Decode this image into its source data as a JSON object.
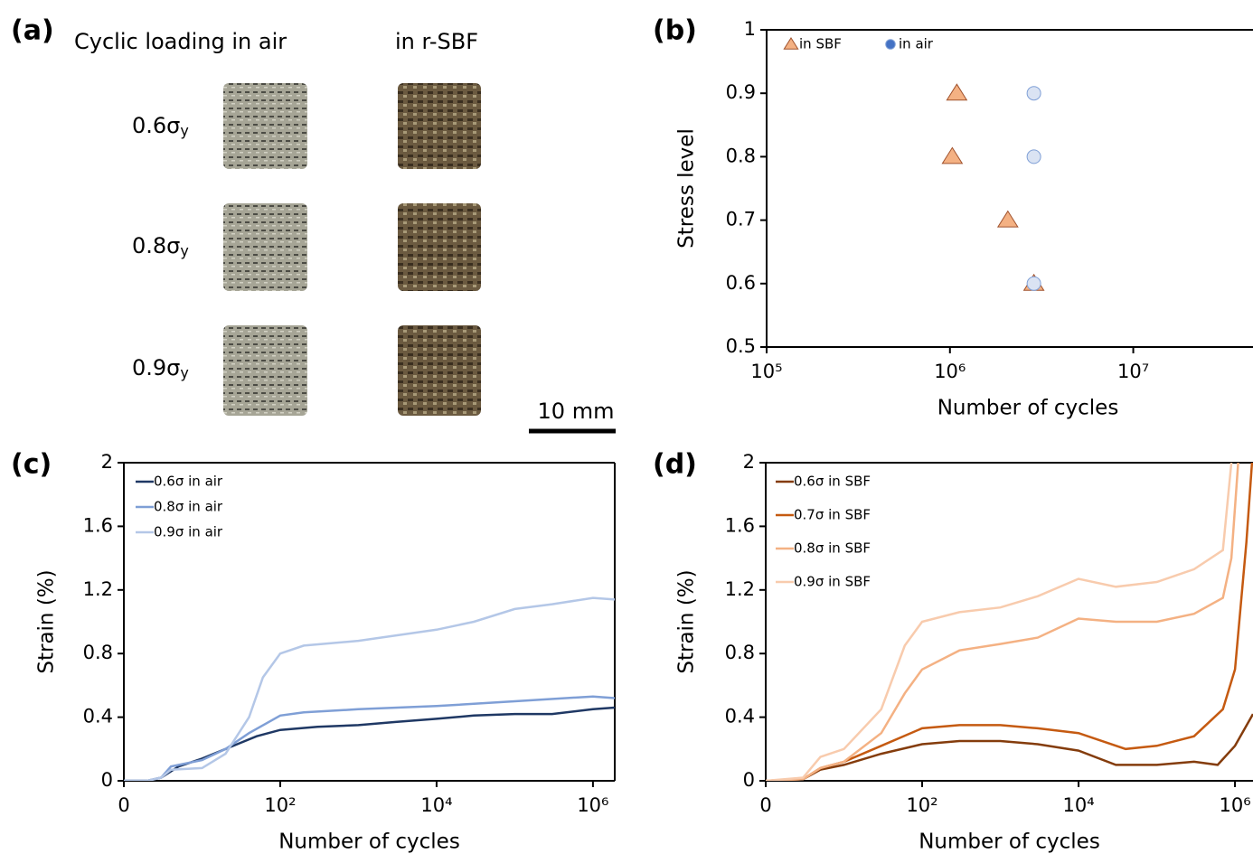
{
  "panel_a": {
    "panel_label": "(a)",
    "column_titles": [
      "Cyclic loading in air",
      "in r-SBF"
    ],
    "rows": [
      {
        "label": "0.6σ",
        "subscript": "y"
      },
      {
        "label": "0.8σ",
        "subscript": "y"
      },
      {
        "label": "0.9σ",
        "subscript": "y"
      }
    ],
    "scale_bar": "10 mm"
  },
  "chart_data": [
    {
      "type": "scatter",
      "panel_label": "(b)",
      "x_label": "Number of cycles",
      "y_label": "Stress level",
      "x_scale": "log",
      "xlim": [
        100000,
        45000000
      ],
      "xticks": [
        {
          "value": 100000,
          "label": "10⁵"
        },
        {
          "value": 1000000,
          "label": "10⁶"
        },
        {
          "value": 10000000,
          "label": "10⁷"
        }
      ],
      "ylim": [
        0.5,
        1
      ],
      "yticks": [
        0.5,
        0.6,
        0.7,
        0.8,
        0.9,
        1
      ],
      "series": [
        {
          "name": "in SBF",
          "color": "#f4b183",
          "marker": "triangle",
          "x": [
            1090000,
            1030000,
            2070000,
            2870000
          ],
          "values": [
            0.9,
            0.8,
            0.7,
            0.6
          ]
        },
        {
          "name": "in air",
          "color": "#4472c4",
          "marker": "circle",
          "x": [
            2870000,
            2870000,
            2870000
          ],
          "values": [
            0.9,
            0.8,
            0.6
          ]
        }
      ]
    },
    {
      "type": "line",
      "panel_label": "(c)",
      "x_label": "Number of cycles",
      "y_label": "Strain (%)",
      "x_scale": "log",
      "xlim": [
        1,
        1900000
      ],
      "xticks": [
        {
          "value": 1,
          "label": "0"
        },
        {
          "value": 100,
          "label": "10²"
        },
        {
          "value": 10000,
          "label": "10⁴"
        },
        {
          "value": 1000000,
          "label": "10⁶"
        }
      ],
      "ylim": [
        0,
        2
      ],
      "yticks": [
        0,
        0.4,
        0.8,
        1.2,
        1.6,
        2
      ],
      "series": [
        {
          "name": "0.6σ in air",
          "color": "#1f3864",
          "x": [
            1,
            2,
            3,
            5,
            10,
            20,
            50,
            100,
            300,
            1000,
            3000,
            10000,
            30000,
            100000,
            300000,
            1000000,
            1900000
          ],
          "values": [
            0,
            0,
            0.02,
            0.09,
            0.14,
            0.2,
            0.28,
            0.32,
            0.34,
            0.35,
            0.37,
            0.39,
            0.41,
            0.42,
            0.42,
            0.45,
            0.46
          ]
        },
        {
          "name": "0.8σ in air",
          "color": "#7f9fd6",
          "x": [
            1,
            2,
            3,
            4,
            10,
            20,
            40,
            100,
            200,
            1000,
            10000,
            100000,
            1000000,
            1900000
          ],
          "values": [
            0,
            0,
            0.02,
            0.09,
            0.13,
            0.2,
            0.3,
            0.41,
            0.43,
            0.45,
            0.47,
            0.5,
            0.53,
            0.52
          ]
        },
        {
          "name": "0.9σ in air",
          "color": "#b4c7e7",
          "x": [
            1,
            2,
            3,
            4,
            10,
            20,
            40,
            60,
            100,
            200,
            1000,
            10000,
            30000,
            100000,
            300000,
            1000000,
            1900000
          ],
          "values": [
            0,
            0,
            0.02,
            0.07,
            0.08,
            0.17,
            0.4,
            0.65,
            0.8,
            0.85,
            0.88,
            0.95,
            1.0,
            1.08,
            1.11,
            1.15,
            1.14
          ]
        }
      ]
    },
    {
      "type": "line",
      "panel_label": "(d)",
      "x_label": "Number of cycles",
      "y_label": "Strain (%)",
      "x_scale": "log",
      "xlim": [
        1,
        1700000
      ],
      "xticks": [
        {
          "value": 1,
          "label": "0"
        },
        {
          "value": 100,
          "label": "10²"
        },
        {
          "value": 10000,
          "label": "10⁴"
        },
        {
          "value": 1000000,
          "label": "10⁶"
        }
      ],
      "ylim": [
        0,
        2
      ],
      "yticks": [
        0,
        0.4,
        0.8,
        1.2,
        1.6,
        2
      ],
      "series": [
        {
          "name": "0.6σ in SBF",
          "color": "#843c0c",
          "x": [
            1,
            3,
            5,
            10,
            30,
            100,
            300,
            1000,
            3000,
            10000,
            30000,
            100000,
            300000,
            600000,
            1000000,
            1700000
          ],
          "values": [
            0,
            0.01,
            0.07,
            0.1,
            0.17,
            0.23,
            0.25,
            0.25,
            0.23,
            0.19,
            0.1,
            0.1,
            0.12,
            0.1,
            0.22,
            0.42
          ]
        },
        {
          "name": "0.7σ in SBF",
          "color": "#c55a11",
          "x": [
            1,
            3,
            5,
            10,
            30,
            100,
            300,
            1000,
            3000,
            10000,
            40000,
            100000,
            300000,
            700000,
            1000000,
            1400000,
            1650000
          ],
          "values": [
            0,
            0.01,
            0.08,
            0.12,
            0.22,
            0.33,
            0.35,
            0.35,
            0.33,
            0.3,
            0.2,
            0.22,
            0.28,
            0.45,
            0.7,
            1.5,
            2.0
          ]
        },
        {
          "name": "0.8σ in SBF",
          "color": "#f4b183",
          "x": [
            1,
            3,
            5,
            10,
            30,
            60,
            100,
            300,
            1000,
            3000,
            10000,
            30000,
            100000,
            300000,
            700000,
            900000,
            1100000
          ],
          "values": [
            0,
            0.01,
            0.08,
            0.12,
            0.3,
            0.55,
            0.7,
            0.82,
            0.86,
            0.9,
            1.02,
            1.0,
            1.0,
            1.05,
            1.15,
            1.4,
            2.0
          ]
        },
        {
          "name": "0.9σ in SBF",
          "color": "#f8cbad",
          "x": [
            1,
            3,
            5,
            10,
            30,
            60,
            100,
            300,
            1000,
            3000,
            10000,
            30000,
            100000,
            300000,
            700000,
            900000
          ],
          "values": [
            0,
            0.02,
            0.15,
            0.2,
            0.45,
            0.85,
            1.0,
            1.06,
            1.09,
            1.16,
            1.27,
            1.22,
            1.25,
            1.33,
            1.45,
            2.0
          ]
        }
      ]
    }
  ]
}
